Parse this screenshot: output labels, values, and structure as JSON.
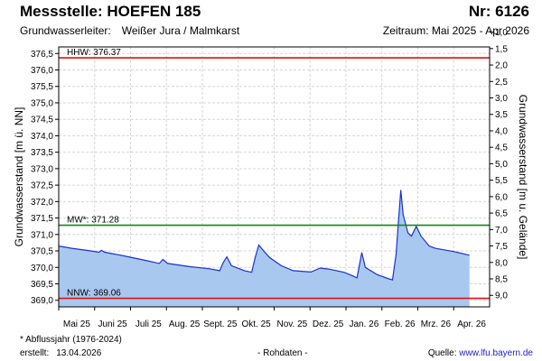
{
  "header": {
    "station_label": "Messstelle: HOEFEN 185",
    "number_label": "Nr: 6126",
    "aquifer_prefix": "Grundwasserleiter:",
    "aquifer_name": "Weißer Jura / Malmkarst",
    "period_label": "Zeitraum: Mai 2025 - Apr 2026"
  },
  "footer": {
    "footnote": "* Abflussjahr (1976-2024)",
    "created_prefix": "erstellt:",
    "created_date": "13.04.2026",
    "raw_data": "- Rohdaten -",
    "source_prefix": "Quelle:",
    "source_link": "www.lfu.bayern.de"
  },
  "chart_data": {
    "type": "area",
    "title": "Messstelle: HOEFEN 185",
    "ylabel": "Grundwasserstand [m ü. NN]",
    "ylabel_right": "Grundwasserstand [m u. Gelände]",
    "ylim": [
      368.8,
      376.7
    ],
    "ylim_right": [
      9.35,
      1.45
    ],
    "y_ticks": [
      "369,0",
      "369,5",
      "370,0",
      "370,5",
      "371,0",
      "371,5",
      "372,0",
      "372,5",
      "373,0",
      "373,5",
      "374,0",
      "374,5",
      "375,0",
      "375,5",
      "376,0",
      "376,5"
    ],
    "y_tick_values": [
      369.0,
      369.5,
      370.0,
      370.5,
      371.0,
      371.5,
      372.0,
      372.5,
      373.0,
      373.5,
      374.0,
      374.5,
      375.0,
      375.5,
      376.0,
      376.5
    ],
    "y_ticks_right": [
      "1,0",
      "1,5",
      "2,0",
      "2,5",
      "3,0",
      "3,5",
      "4,0",
      "4,5",
      "5,0",
      "5,5",
      "6,0",
      "6,5",
      "7,0",
      "7,5",
      "8,0",
      "8,5",
      "9,0"
    ],
    "y_tick_values_right": [
      1.0,
      1.5,
      2.0,
      2.5,
      3.0,
      3.5,
      4.0,
      4.5,
      5.0,
      5.5,
      6.0,
      6.5,
      7.0,
      7.5,
      8.0,
      8.5,
      9.0
    ],
    "x_ticks": [
      "Mai 25",
      "Juni 25",
      "Juli 25",
      "Aug. 25",
      "Sept. 25",
      "Okt. 25",
      "Nov. 25",
      "Dez. 25",
      "Jan. 26",
      "Feb. 26",
      "Mrz. 26",
      "Apr. 26"
    ],
    "x_range": [
      "2025-05-01",
      "2026-04-30"
    ],
    "grid": true,
    "reference_lines": [
      {
        "label": "HHW: 376.37",
        "value": 376.37,
        "color": "#dd1111"
      },
      {
        "label": "MW*: 371.28",
        "value": 371.28,
        "color": "#118811"
      },
      {
        "label": "NNW: 369.06",
        "value": 369.06,
        "color": "#dd1111"
      }
    ],
    "series": [
      {
        "color": "#1a33cc",
        "fill": "#a8c8f0",
        "points": [
          [
            "2025-05-01",
            370.65
          ],
          [
            "2025-05-12",
            370.58
          ],
          [
            "2025-05-28",
            370.5
          ],
          [
            "2025-06-04",
            370.46
          ],
          [
            "2025-06-06",
            370.52
          ],
          [
            "2025-06-09",
            370.46
          ],
          [
            "2025-06-25",
            370.35
          ],
          [
            "2025-07-15",
            370.2
          ],
          [
            "2025-07-25",
            370.12
          ],
          [
            "2025-07-28",
            370.24
          ],
          [
            "2025-08-01",
            370.12
          ],
          [
            "2025-08-20",
            370.02
          ],
          [
            "2025-09-05",
            369.96
          ],
          [
            "2025-09-14",
            369.9
          ],
          [
            "2025-09-17",
            370.15
          ],
          [
            "2025-09-20",
            370.32
          ],
          [
            "2025-09-24",
            370.05
          ],
          [
            "2025-10-05",
            369.9
          ],
          [
            "2025-10-11",
            369.85
          ],
          [
            "2025-10-14",
            370.3
          ],
          [
            "2025-10-17",
            370.68
          ],
          [
            "2025-10-20",
            370.55
          ],
          [
            "2025-10-26",
            370.3
          ],
          [
            "2025-11-05",
            370.05
          ],
          [
            "2025-11-15",
            369.9
          ],
          [
            "2025-11-30",
            369.86
          ],
          [
            "2025-12-08",
            369.98
          ],
          [
            "2025-12-15",
            369.95
          ],
          [
            "2025-12-28",
            369.85
          ],
          [
            "2026-01-04",
            369.75
          ],
          [
            "2026-01-08",
            369.68
          ],
          [
            "2026-01-12",
            370.45
          ],
          [
            "2026-01-15",
            370.0
          ],
          [
            "2026-01-25",
            369.78
          ],
          [
            "2026-02-04",
            369.65
          ],
          [
            "2026-02-07",
            369.62
          ],
          [
            "2026-02-10",
            370.4
          ],
          [
            "2026-02-12",
            371.4
          ],
          [
            "2026-02-14",
            372.35
          ],
          [
            "2026-02-16",
            371.6
          ],
          [
            "2026-02-20",
            371.05
          ],
          [
            "2026-02-23",
            370.95
          ],
          [
            "2026-02-27",
            371.25
          ],
          [
            "2026-03-03",
            370.95
          ],
          [
            "2026-03-10",
            370.65
          ],
          [
            "2026-03-15",
            370.58
          ],
          [
            "2026-03-31",
            370.48
          ],
          [
            "2026-04-13",
            370.37
          ]
        ]
      }
    ]
  }
}
